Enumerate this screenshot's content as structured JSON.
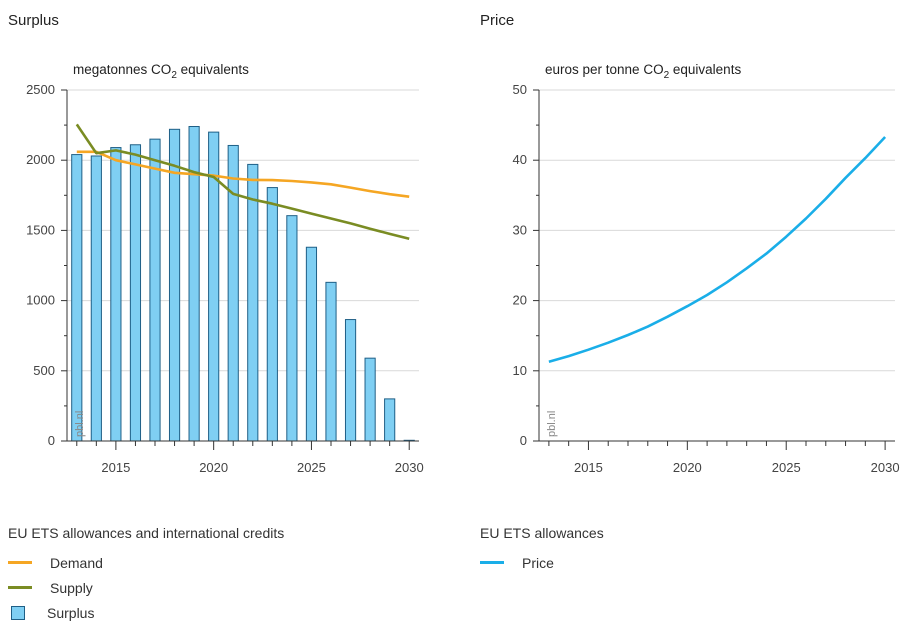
{
  "colors": {
    "demand": "#f5a623",
    "supply": "#7a8c23",
    "surplus_fill": "#7fcff3",
    "surplus_stroke": "#1f5f86",
    "price": "#1aaee8",
    "grid": "#d9d9d9",
    "axis": "#333333"
  },
  "watermark": "pbl.nl",
  "chart_data": [
    {
      "type": "bar",
      "title": "Surplus",
      "ylabel_prefix": "megatonnes CO",
      "ylabel_sub": "2",
      "ylabel_suffix": " equivalents",
      "xlim": [
        2012.5,
        2030.5
      ],
      "ylim": [
        0,
        2500
      ],
      "yticks": [
        0,
        500,
        1000,
        1500,
        2000,
        2500
      ],
      "xticks": [
        2015,
        2020,
        2025,
        2030
      ],
      "grid": true,
      "series": [
        {
          "name": "Surplus",
          "type": "bar",
          "x": [
            2013,
            2014,
            2015,
            2016,
            2017,
            2018,
            2019,
            2020,
            2021,
            2022,
            2023,
            2024,
            2025,
            2026,
            2027,
            2028,
            2029,
            2030
          ],
          "values": [
            2040,
            2030,
            2090,
            2110,
            2150,
            2220,
            2240,
            2200,
            2105,
            1970,
            1805,
            1605,
            1380,
            1130,
            865,
            590,
            300,
            5
          ]
        },
        {
          "name": "Demand",
          "type": "line",
          "x": [
            2013,
            2014,
            2015,
            2016,
            2017,
            2018,
            2019,
            2020,
            2021,
            2022,
            2023,
            2024,
            2025,
            2026,
            2027,
            2028,
            2029,
            2030
          ],
          "values": [
            2060,
            2060,
            2000,
            1970,
            1940,
            1910,
            1900,
            1890,
            1870,
            1860,
            1858,
            1852,
            1842,
            1828,
            1805,
            1780,
            1758,
            1740
          ]
        },
        {
          "name": "Supply",
          "type": "line",
          "x": [
            2013,
            2014,
            2015,
            2016,
            2017,
            2018,
            2019,
            2020,
            2021,
            2022,
            2023,
            2024,
            2025,
            2026,
            2027,
            2028,
            2029,
            2030
          ],
          "values": [
            2255,
            2050,
            2070,
            2040,
            2000,
            1960,
            1915,
            1880,
            1760,
            1720,
            1690,
            1655,
            1620,
            1585,
            1550,
            1512,
            1475,
            1440
          ]
        }
      ]
    },
    {
      "type": "line",
      "title": "Price",
      "ylabel_prefix": "euros per tonne CO",
      "ylabel_sub": "2",
      "ylabel_suffix": " equivalents",
      "xlim": [
        2012.5,
        2030.5
      ],
      "ylim": [
        0,
        50
      ],
      "yticks": [
        0,
        10,
        20,
        30,
        40,
        50
      ],
      "xticks": [
        2015,
        2020,
        2025,
        2030
      ],
      "grid": true,
      "series": [
        {
          "name": "Price",
          "type": "line",
          "x": [
            2013,
            2014,
            2015,
            2016,
            2017,
            2018,
            2019,
            2020,
            2021,
            2022,
            2023,
            2024,
            2025,
            2026,
            2027,
            2028,
            2029,
            2030
          ],
          "values": [
            11.3,
            12.1,
            13.0,
            14.0,
            15.1,
            16.3,
            17.7,
            19.2,
            20.8,
            22.6,
            24.6,
            26.7,
            29.1,
            31.7,
            34.5,
            37.5,
            40.3,
            43.3
          ]
        }
      ]
    }
  ],
  "legend_left": {
    "heading": "EU ETS allowances and international credits",
    "items": [
      "Demand",
      "Supply",
      "Surplus"
    ]
  },
  "legend_right": {
    "heading": "EU ETS allowances",
    "items": [
      "Price"
    ]
  }
}
